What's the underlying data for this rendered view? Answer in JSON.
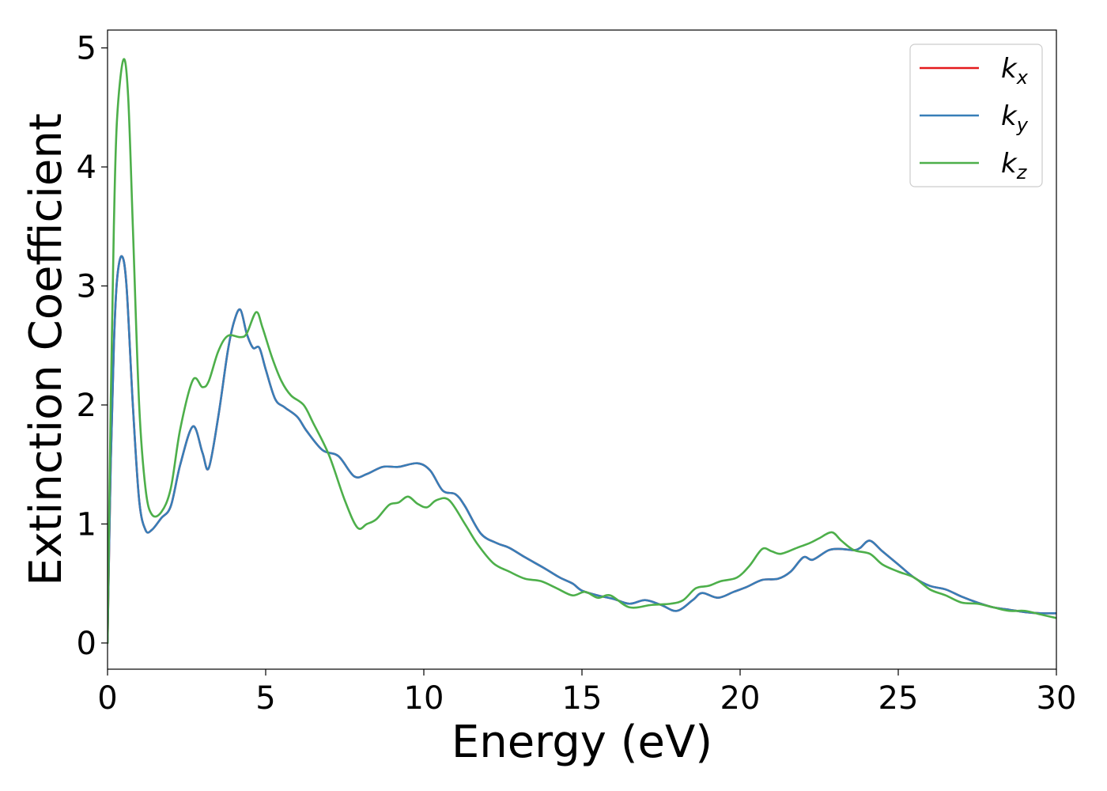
{
  "chart_data": {
    "type": "line",
    "title": "",
    "xlabel": "Energy (eV)",
    "ylabel": "Extinction Coefficient",
    "xlim": [
      0,
      30
    ],
    "ylim": [
      -0.22,
      5.15
    ],
    "xticks": [
      0,
      5,
      10,
      15,
      20,
      25,
      30
    ],
    "yticks": [
      0,
      1,
      2,
      3,
      4,
      5
    ],
    "grid": false,
    "legend_position": "top-right",
    "series": [
      {
        "name": "k",
        "sub": "x",
        "color": "#e41a1c",
        "points": [
          [
            0,
            0
          ],
          [
            0.1,
            1.5
          ],
          [
            0.2,
            2.5
          ],
          [
            0.3,
            3.05
          ],
          [
            0.45,
            3.25
          ],
          [
            0.6,
            3.0
          ],
          [
            0.8,
            2.0
          ],
          [
            1.0,
            1.2
          ],
          [
            1.2,
            0.95
          ],
          [
            1.4,
            0.95
          ],
          [
            1.7,
            1.05
          ],
          [
            2.0,
            1.15
          ],
          [
            2.3,
            1.5
          ],
          [
            2.7,
            1.82
          ],
          [
            3.0,
            1.6
          ],
          [
            3.2,
            1.47
          ],
          [
            3.5,
            1.9
          ],
          [
            3.8,
            2.45
          ],
          [
            4.0,
            2.7
          ],
          [
            4.2,
            2.8
          ],
          [
            4.4,
            2.6
          ],
          [
            4.6,
            2.48
          ],
          [
            4.8,
            2.48
          ],
          [
            5.0,
            2.3
          ],
          [
            5.3,
            2.05
          ],
          [
            5.6,
            1.98
          ],
          [
            6.0,
            1.9
          ],
          [
            6.3,
            1.78
          ],
          [
            6.8,
            1.62
          ],
          [
            7.3,
            1.57
          ],
          [
            7.8,
            1.4
          ],
          [
            8.2,
            1.42
          ],
          [
            8.7,
            1.48
          ],
          [
            9.2,
            1.48
          ],
          [
            9.8,
            1.51
          ],
          [
            10.2,
            1.45
          ],
          [
            10.6,
            1.28
          ],
          [
            11.0,
            1.25
          ],
          [
            11.3,
            1.15
          ],
          [
            11.8,
            0.92
          ],
          [
            12.3,
            0.84
          ],
          [
            12.7,
            0.8
          ],
          [
            13.2,
            0.72
          ],
          [
            13.8,
            0.63
          ],
          [
            14.3,
            0.55
          ],
          [
            14.7,
            0.5
          ],
          [
            15.0,
            0.44
          ],
          [
            15.5,
            0.4
          ],
          [
            16.0,
            0.37
          ],
          [
            16.5,
            0.33
          ],
          [
            17.0,
            0.36
          ],
          [
            17.5,
            0.32
          ],
          [
            18.0,
            0.27
          ],
          [
            18.5,
            0.36
          ],
          [
            18.8,
            0.42
          ],
          [
            19.3,
            0.38
          ],
          [
            19.8,
            0.43
          ],
          [
            20.2,
            0.47
          ],
          [
            20.7,
            0.53
          ],
          [
            21.2,
            0.54
          ],
          [
            21.6,
            0.6
          ],
          [
            22.0,
            0.72
          ],
          [
            22.3,
            0.7
          ],
          [
            22.8,
            0.78
          ],
          [
            23.2,
            0.79
          ],
          [
            23.6,
            0.78
          ],
          [
            23.8,
            0.8
          ],
          [
            24.1,
            0.86
          ],
          [
            24.5,
            0.77
          ],
          [
            25.0,
            0.66
          ],
          [
            25.5,
            0.55
          ],
          [
            26.0,
            0.48
          ],
          [
            26.5,
            0.45
          ],
          [
            27.0,
            0.39
          ],
          [
            27.5,
            0.34
          ],
          [
            28.0,
            0.3
          ],
          [
            28.5,
            0.28
          ],
          [
            29.0,
            0.26
          ],
          [
            29.5,
            0.25
          ],
          [
            30.0,
            0.25
          ]
        ]
      },
      {
        "name": "k",
        "sub": "y",
        "color": "#377eb8",
        "points": [
          [
            0,
            0
          ],
          [
            0.1,
            1.5
          ],
          [
            0.2,
            2.5
          ],
          [
            0.3,
            3.05
          ],
          [
            0.45,
            3.25
          ],
          [
            0.6,
            3.0
          ],
          [
            0.8,
            2.0
          ],
          [
            1.0,
            1.2
          ],
          [
            1.2,
            0.95
          ],
          [
            1.4,
            0.95
          ],
          [
            1.7,
            1.05
          ],
          [
            2.0,
            1.15
          ],
          [
            2.3,
            1.5
          ],
          [
            2.7,
            1.82
          ],
          [
            3.0,
            1.6
          ],
          [
            3.2,
            1.47
          ],
          [
            3.5,
            1.9
          ],
          [
            3.8,
            2.45
          ],
          [
            4.0,
            2.7
          ],
          [
            4.2,
            2.8
          ],
          [
            4.4,
            2.6
          ],
          [
            4.6,
            2.48
          ],
          [
            4.8,
            2.48
          ],
          [
            5.0,
            2.3
          ],
          [
            5.3,
            2.05
          ],
          [
            5.6,
            1.98
          ],
          [
            6.0,
            1.9
          ],
          [
            6.3,
            1.78
          ],
          [
            6.8,
            1.62
          ],
          [
            7.3,
            1.57
          ],
          [
            7.8,
            1.4
          ],
          [
            8.2,
            1.42
          ],
          [
            8.7,
            1.48
          ],
          [
            9.2,
            1.48
          ],
          [
            9.8,
            1.51
          ],
          [
            10.2,
            1.45
          ],
          [
            10.6,
            1.28
          ],
          [
            11.0,
            1.25
          ],
          [
            11.3,
            1.15
          ],
          [
            11.8,
            0.92
          ],
          [
            12.3,
            0.84
          ],
          [
            12.7,
            0.8
          ],
          [
            13.2,
            0.72
          ],
          [
            13.8,
            0.63
          ],
          [
            14.3,
            0.55
          ],
          [
            14.7,
            0.5
          ],
          [
            15.0,
            0.44
          ],
          [
            15.5,
            0.4
          ],
          [
            16.0,
            0.37
          ],
          [
            16.5,
            0.33
          ],
          [
            17.0,
            0.36
          ],
          [
            17.5,
            0.32
          ],
          [
            18.0,
            0.27
          ],
          [
            18.5,
            0.36
          ],
          [
            18.8,
            0.42
          ],
          [
            19.3,
            0.38
          ],
          [
            19.8,
            0.43
          ],
          [
            20.2,
            0.47
          ],
          [
            20.7,
            0.53
          ],
          [
            21.2,
            0.54
          ],
          [
            21.6,
            0.6
          ],
          [
            22.0,
            0.72
          ],
          [
            22.3,
            0.7
          ],
          [
            22.8,
            0.78
          ],
          [
            23.2,
            0.79
          ],
          [
            23.6,
            0.78
          ],
          [
            23.8,
            0.8
          ],
          [
            24.1,
            0.86
          ],
          [
            24.5,
            0.77
          ],
          [
            25.0,
            0.66
          ],
          [
            25.5,
            0.55
          ],
          [
            26.0,
            0.48
          ],
          [
            26.5,
            0.45
          ],
          [
            27.0,
            0.39
          ],
          [
            27.5,
            0.34
          ],
          [
            28.0,
            0.3
          ],
          [
            28.5,
            0.28
          ],
          [
            29.0,
            0.26
          ],
          [
            29.5,
            0.25
          ],
          [
            30.0,
            0.25
          ]
        ]
      },
      {
        "name": "k",
        "sub": "z",
        "color": "#4daf4a",
        "points": [
          [
            0,
            0
          ],
          [
            0.1,
            2.0
          ],
          [
            0.2,
            3.5
          ],
          [
            0.3,
            4.4
          ],
          [
            0.5,
            4.9
          ],
          [
            0.65,
            4.6
          ],
          [
            0.8,
            3.5
          ],
          [
            1.0,
            2.0
          ],
          [
            1.2,
            1.3
          ],
          [
            1.4,
            1.08
          ],
          [
            1.7,
            1.1
          ],
          [
            2.0,
            1.3
          ],
          [
            2.3,
            1.8
          ],
          [
            2.7,
            2.21
          ],
          [
            3.0,
            2.15
          ],
          [
            3.2,
            2.2
          ],
          [
            3.5,
            2.45
          ],
          [
            3.8,
            2.58
          ],
          [
            4.2,
            2.57
          ],
          [
            4.4,
            2.6
          ],
          [
            4.7,
            2.78
          ],
          [
            4.9,
            2.65
          ],
          [
            5.2,
            2.4
          ],
          [
            5.5,
            2.2
          ],
          [
            5.8,
            2.08
          ],
          [
            6.2,
            2.0
          ],
          [
            6.5,
            1.85
          ],
          [
            7.0,
            1.58
          ],
          [
            7.5,
            1.2
          ],
          [
            7.9,
            0.97
          ],
          [
            8.2,
            1.0
          ],
          [
            8.5,
            1.04
          ],
          [
            8.9,
            1.16
          ],
          [
            9.2,
            1.18
          ],
          [
            9.5,
            1.23
          ],
          [
            9.8,
            1.17
          ],
          [
            10.1,
            1.14
          ],
          [
            10.4,
            1.2
          ],
          [
            10.8,
            1.2
          ],
          [
            11.3,
            1.0
          ],
          [
            11.7,
            0.83
          ],
          [
            12.2,
            0.67
          ],
          [
            12.7,
            0.6
          ],
          [
            13.2,
            0.54
          ],
          [
            13.7,
            0.52
          ],
          [
            14.2,
            0.46
          ],
          [
            14.7,
            0.4
          ],
          [
            15.1,
            0.43
          ],
          [
            15.5,
            0.38
          ],
          [
            15.9,
            0.4
          ],
          [
            16.5,
            0.3
          ],
          [
            17.2,
            0.32
          ],
          [
            17.8,
            0.33
          ],
          [
            18.2,
            0.36
          ],
          [
            18.6,
            0.46
          ],
          [
            19.0,
            0.48
          ],
          [
            19.4,
            0.52
          ],
          [
            19.9,
            0.55
          ],
          [
            20.3,
            0.65
          ],
          [
            20.7,
            0.79
          ],
          [
            21.0,
            0.77
          ],
          [
            21.3,
            0.75
          ],
          [
            21.8,
            0.8
          ],
          [
            22.2,
            0.84
          ],
          [
            22.5,
            0.88
          ],
          [
            22.9,
            0.93
          ],
          [
            23.2,
            0.86
          ],
          [
            23.6,
            0.78
          ],
          [
            24.1,
            0.75
          ],
          [
            24.5,
            0.66
          ],
          [
            25.0,
            0.6
          ],
          [
            25.5,
            0.55
          ],
          [
            26.0,
            0.45
          ],
          [
            26.5,
            0.4
          ],
          [
            27.0,
            0.34
          ],
          [
            27.5,
            0.33
          ],
          [
            28.0,
            0.3
          ],
          [
            28.5,
            0.27
          ],
          [
            29.0,
            0.27
          ],
          [
            29.5,
            0.24
          ],
          [
            30.0,
            0.21
          ]
        ]
      }
    ]
  }
}
